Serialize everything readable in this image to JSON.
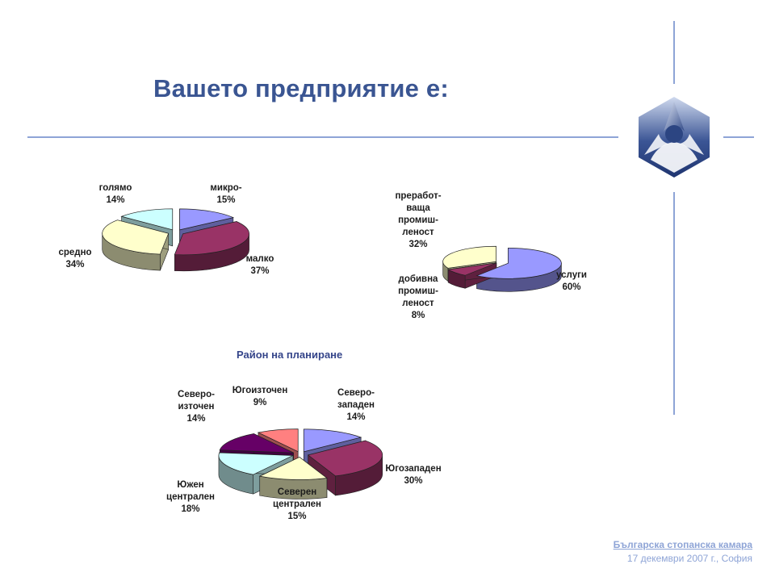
{
  "page": {
    "title": "Вашето предприятие е:"
  },
  "footer": {
    "organization": "Българска стопанска камара",
    "date_place": "17 декември 2007 г., София"
  },
  "colors": {
    "accent_line": "#8ea4d6",
    "title": "#3a5592"
  },
  "chart_data": [
    {
      "type": "pie",
      "title": "",
      "slices": [
        {
          "label": [
            "микро-",
            "15%"
          ],
          "value": 15,
          "color": "#9999ff"
        },
        {
          "label": [
            "малко",
            "37%"
          ],
          "value": 37,
          "color": "#993366"
        },
        {
          "label": [
            "средно",
            "34%"
          ],
          "value": 34,
          "color": "#ffffcc"
        },
        {
          "label": [
            "голямо",
            "14%"
          ],
          "value": 14,
          "color": "#ccffff"
        }
      ]
    },
    {
      "type": "pie",
      "title": "",
      "slices": [
        {
          "label": [
            "услуги",
            "60%"
          ],
          "value": 60,
          "color": "#9999ff"
        },
        {
          "label": [
            "добивна",
            "промиш-",
            "леност",
            "8%"
          ],
          "value": 8,
          "color": "#993366"
        },
        {
          "label": [
            "преработ-",
            "ваща",
            "промиш-",
            "леност",
            "32%"
          ],
          "value": 32,
          "color": "#ffffcc"
        }
      ]
    },
    {
      "type": "pie",
      "title": "Район на планиране",
      "slices": [
        {
          "label": [
            "Северо-",
            "западен",
            "14%"
          ],
          "value": 14,
          "color": "#9999ff"
        },
        {
          "label": [
            "Югозападен",
            "30%"
          ],
          "value": 30,
          "color": "#993366"
        },
        {
          "label": [
            "Северен",
            "централен",
            "15%"
          ],
          "value": 15,
          "color": "#ffffcc"
        },
        {
          "label": [
            "Южен",
            "централен",
            "18%"
          ],
          "value": 18,
          "color": "#ccffff"
        },
        {
          "label": [
            "Северо-",
            "източен",
            "14%"
          ],
          "value": 14,
          "color": "#660066"
        },
        {
          "label": [
            "Югоизточен",
            "9%"
          ],
          "value": 9,
          "color": "#ff8080"
        }
      ]
    }
  ]
}
